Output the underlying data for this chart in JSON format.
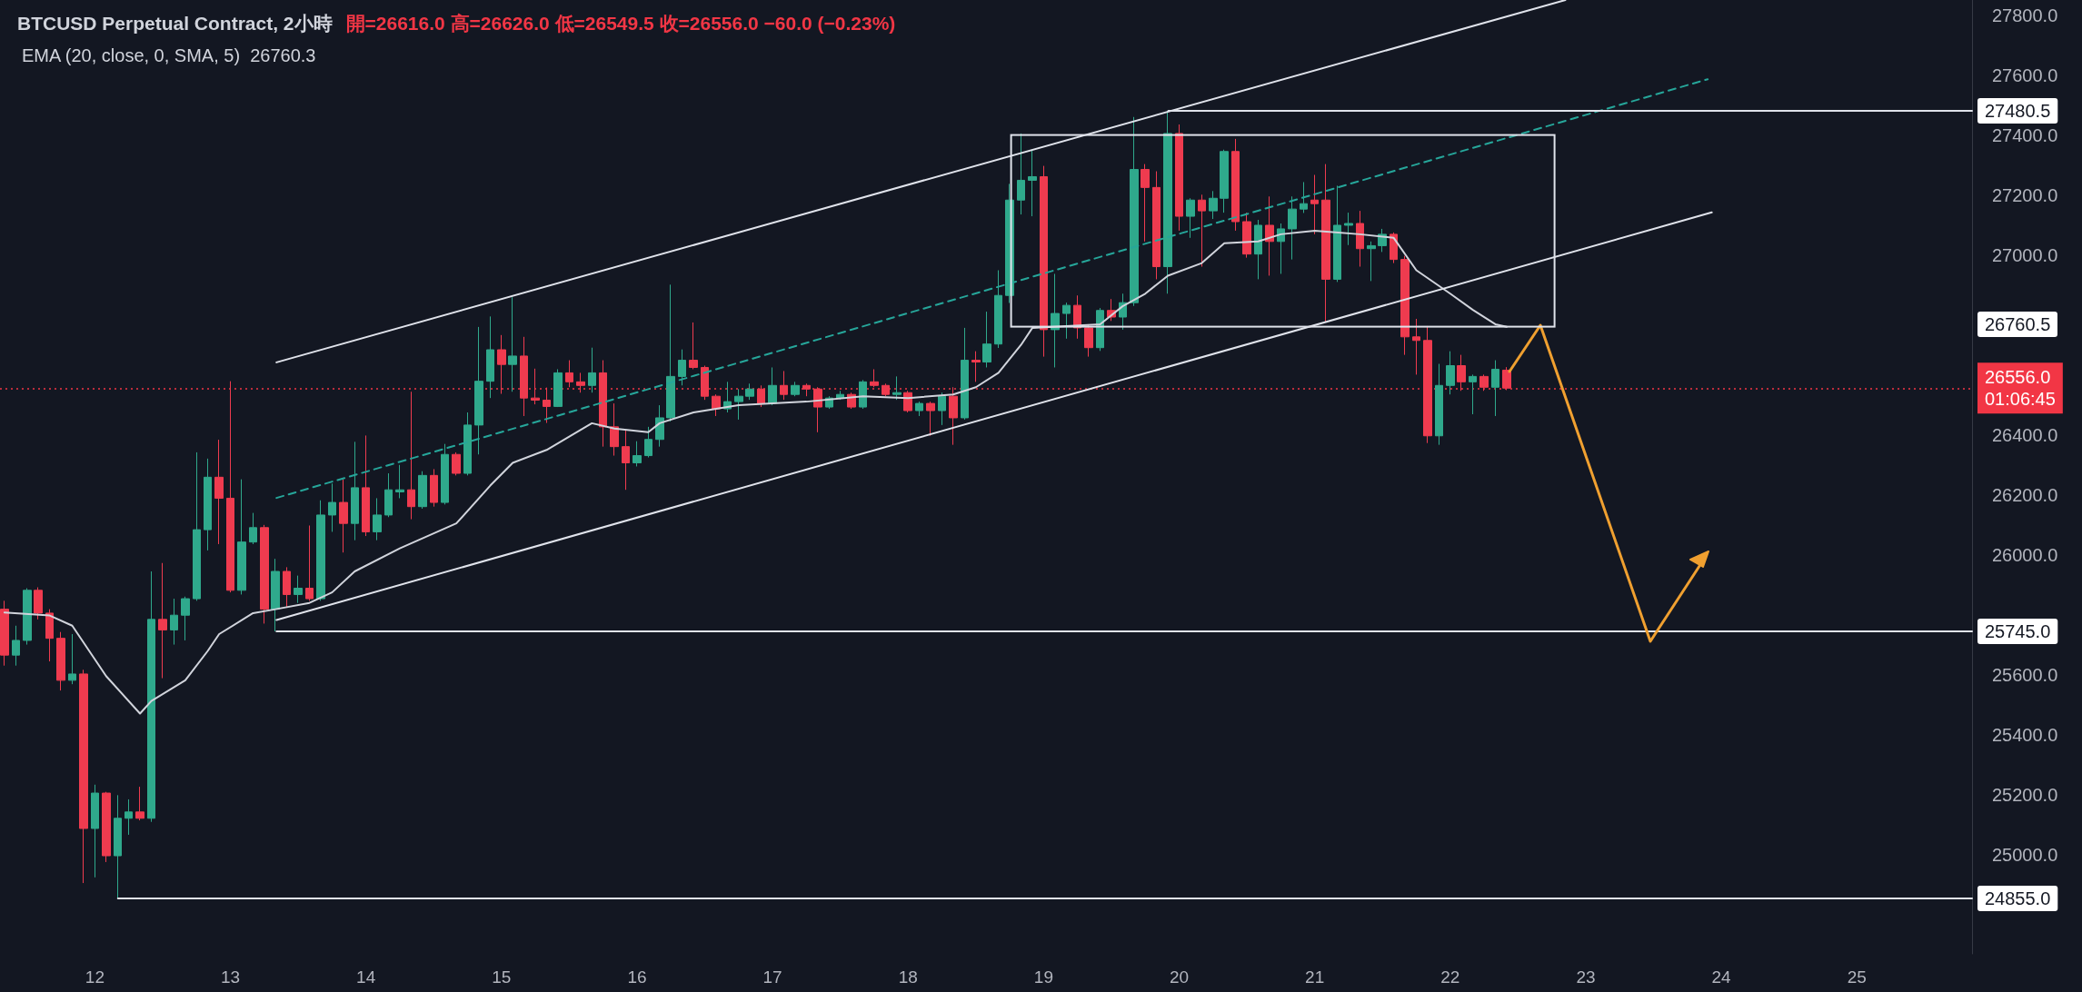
{
  "chart_data": {
    "type": "candlestick",
    "title": "BTCUSD Perpetual Contract, 2小時",
    "subtitle": "開=26616.0 高=26626.0 低=26549.5 收=26556.0 −60.0 (−0.23%)",
    "x": [
      11.333,
      11.417,
      11.5,
      11.583,
      11.667,
      11.75,
      11.833,
      11.917,
      12,
      12.083,
      12.167,
      12.25,
      12.333,
      12.417,
      12.5,
      12.583,
      12.667,
      12.75,
      12.833,
      12.917,
      13,
      13.083,
      13.167,
      13.25,
      13.333,
      13.417,
      13.5,
      13.583,
      13.667,
      13.75,
      13.833,
      13.917,
      14,
      14.083,
      14.167,
      14.25,
      14.333,
      14.417,
      14.5,
      14.583,
      14.667,
      14.75,
      14.833,
      14.917,
      15,
      15.083,
      15.167,
      15.25,
      15.333,
      15.417,
      15.5,
      15.583,
      15.667,
      15.75,
      15.833,
      15.917,
      16,
      16.083,
      16.167,
      16.25,
      16.333,
      16.417,
      16.5,
      16.583,
      16.667,
      16.75,
      16.833,
      16.917,
      17,
      17.083,
      17.167,
      17.25,
      17.333,
      17.417,
      17.5,
      17.583,
      17.667,
      17.75,
      17.833,
      17.917,
      18,
      18.083,
      18.167,
      18.25,
      18.333,
      18.417,
      18.5,
      18.583,
      18.667,
      18.75,
      18.833,
      18.917,
      19,
      19.083,
      19.167,
      19.25,
      19.333,
      19.417,
      19.5,
      19.583,
      19.667,
      19.75,
      19.833,
      19.917,
      20,
      20.083,
      20.167,
      20.25,
      20.333,
      20.417,
      20.5,
      20.583,
      20.667,
      20.75,
      20.833,
      20.917,
      21,
      21.083,
      21.167,
      21.25,
      21.333,
      21.417,
      21.5,
      21.583,
      21.667,
      21.75,
      21.833,
      21.917,
      22,
      22.083,
      22.167,
      22.25,
      22.333,
      22.417
    ],
    "ohlc": [
      [
        25819,
        25847,
        25631,
        25666
      ],
      [
        25666,
        25764,
        25631,
        25715
      ],
      [
        25715,
        25889,
        25701,
        25882
      ],
      [
        25882,
        25892,
        25785,
        25806
      ],
      [
        25806,
        25819,
        25645,
        25722
      ],
      [
        25722,
        25743,
        25548,
        25582
      ],
      [
        25582,
        25736,
        25569,
        25603
      ],
      [
        25603,
        25617,
        24906,
        25088
      ],
      [
        25088,
        25234,
        24925,
        25206
      ],
      [
        25206,
        25210,
        24976,
        24997
      ],
      [
        24997,
        25199,
        24855,
        25122
      ],
      [
        25122,
        25185,
        25067,
        25143
      ],
      [
        25143,
        25227,
        25115,
        25122
      ],
      [
        25122,
        25945,
        25110,
        25785
      ],
      [
        25785,
        25973,
        25589,
        25750
      ],
      [
        25750,
        25854,
        25701,
        25799
      ],
      [
        25799,
        25861,
        25715,
        25854
      ],
      [
        25854,
        26342,
        25847,
        26084
      ],
      [
        26084,
        26321,
        26015,
        26259
      ],
      [
        26259,
        26384,
        26036,
        26189
      ],
      [
        26189,
        26579,
        25875,
        25882
      ],
      [
        25882,
        26252,
        25868,
        26043
      ],
      [
        26043,
        26140,
        26036,
        26091
      ],
      [
        26091,
        26100,
        25771,
        25819
      ],
      [
        25819,
        25987,
        25745,
        25945
      ],
      [
        25945,
        25959,
        25826,
        25868
      ],
      [
        25868,
        25931,
        25840,
        25889
      ],
      [
        25889,
        26098,
        25847,
        25854
      ],
      [
        25854,
        26182,
        25847,
        26133
      ],
      [
        26133,
        26238,
        26077,
        26175
      ],
      [
        26175,
        26252,
        26008,
        26105
      ],
      [
        26105,
        26377,
        26049,
        26224
      ],
      [
        26224,
        26398,
        26063,
        26077
      ],
      [
        26077,
        26189,
        26049,
        26133
      ],
      [
        26133,
        26272,
        26126,
        26217
      ],
      [
        26210,
        26300,
        26189,
        26217
      ],
      [
        26217,
        26544,
        26119,
        26161
      ],
      [
        26161,
        26279,
        26154,
        26265
      ],
      [
        26265,
        26286,
        26161,
        26175
      ],
      [
        26175,
        26370,
        26168,
        26335
      ],
      [
        26335,
        26342,
        26265,
        26272
      ],
      [
        26272,
        26475,
        26265,
        26433
      ],
      [
        26433,
        26760,
        26335,
        26579
      ],
      [
        26579,
        26795,
        26523,
        26684
      ],
      [
        26684,
        26733,
        26537,
        26635
      ],
      [
        26635,
        26859,
        26544,
        26663
      ],
      [
        26663,
        26727,
        26463,
        26523
      ],
      [
        26523,
        26621,
        26502,
        26516
      ],
      [
        26516,
        26558,
        26440,
        26495
      ],
      [
        26495,
        26619,
        26493,
        26607
      ],
      [
        26607,
        26649,
        26559,
        26577
      ],
      [
        26577,
        26607,
        26541,
        26565
      ],
      [
        26565,
        26691,
        26541,
        26607
      ],
      [
        26607,
        26649,
        26361,
        26427
      ],
      [
        26427,
        26505,
        26331,
        26361
      ],
      [
        26361,
        26415,
        26217,
        26307
      ],
      [
        26307,
        26379,
        26295,
        26331
      ],
      [
        26331,
        26427,
        26325,
        26385
      ],
      [
        26385,
        26499,
        26361,
        26457
      ],
      [
        26457,
        26901,
        26445,
        26595
      ],
      [
        26595,
        26685,
        26565,
        26649
      ],
      [
        26649,
        26775,
        26619,
        26625
      ],
      [
        26625,
        26631,
        26517,
        26529
      ],
      [
        26529,
        26535,
        26463,
        26487
      ],
      [
        26487,
        26577,
        26475,
        26511
      ],
      [
        26511,
        26553,
        26451,
        26529
      ],
      [
        26529,
        26571,
        26517,
        26553
      ],
      [
        26553,
        26565,
        26493,
        26505
      ],
      [
        26505,
        26625,
        26499,
        26565
      ],
      [
        26565,
        26613,
        26517,
        26535
      ],
      [
        26535,
        26577,
        26529,
        26565
      ],
      [
        26565,
        26571,
        26529,
        26553
      ],
      [
        26553,
        26559,
        26409,
        26493
      ],
      [
        26493,
        26529,
        26487,
        26523
      ],
      [
        26523,
        26547,
        26517,
        26535
      ],
      [
        26535,
        26541,
        26487,
        26493
      ],
      [
        26493,
        26583,
        26487,
        26577
      ],
      [
        26577,
        26619,
        26559,
        26565
      ],
      [
        26565,
        26571,
        26529,
        26535
      ],
      [
        26535,
        26595,
        26517,
        26541
      ],
      [
        26541,
        26547,
        26475,
        26481
      ],
      [
        26481,
        26511,
        26463,
        26505
      ],
      [
        26505,
        26511,
        26397,
        26481
      ],
      [
        26481,
        26541,
        26433,
        26529
      ],
      [
        26529,
        26559,
        26367,
        26457
      ],
      [
        26457,
        26757,
        26451,
        26649
      ],
      [
        26649,
        26679,
        26577,
        26643
      ],
      [
        26643,
        26811,
        26625,
        26703
      ],
      [
        26703,
        26949,
        26690,
        26865
      ],
      [
        26865,
        27237,
        26840,
        27183
      ],
      [
        27183,
        27405,
        27135,
        27249
      ],
      [
        27249,
        27351,
        27129,
        27261
      ],
      [
        27261,
        27297,
        26661,
        26751
      ],
      [
        26751,
        26937,
        26625,
        26805
      ],
      [
        26805,
        26841,
        26721,
        26832
      ],
      [
        26832,
        26865,
        26721,
        26757
      ],
      [
        26757,
        26769,
        26661,
        26691
      ],
      [
        26691,
        26823,
        26680,
        26815
      ],
      [
        26815,
        26853,
        26780,
        26793
      ],
      [
        26793,
        26871,
        26751,
        26841
      ],
      [
        26841,
        27460,
        26830,
        27285
      ],
      [
        27285,
        27303,
        27045,
        27225
      ],
      [
        27225,
        27279,
        26919,
        26961
      ],
      [
        26961,
        27480.5,
        26871,
        27405
      ],
      [
        27405,
        27435,
        27081,
        27129
      ],
      [
        27129,
        27189,
        27057,
        27183
      ],
      [
        27183,
        27201,
        26961,
        27147
      ],
      [
        27147,
        27213,
        27120,
        27189
      ],
      [
        27189,
        27351,
        27141,
        27345
      ],
      [
        27345,
        27387,
        27081,
        27111
      ],
      [
        27111,
        27141,
        26991,
        27003
      ],
      [
        27003,
        27117,
        26919,
        27099
      ],
      [
        27099,
        27195,
        26931,
        27045
      ],
      [
        27045,
        27105,
        26937,
        27087
      ],
      [
        27087,
        27195,
        26985,
        27153
      ],
      [
        27153,
        27243,
        27140,
        27171
      ],
      [
        27183,
        27267,
        27069,
        27171
      ],
      [
        27183,
        27303,
        26775,
        26919
      ],
      [
        26919,
        27231,
        26910,
        27099
      ],
      [
        27099,
        27141,
        27033,
        27105
      ],
      [
        27105,
        27147,
        26961,
        27021
      ],
      [
        27021,
        27045,
        26913,
        27031
      ],
      [
        27031,
        27087,
        27010,
        27069
      ],
      [
        27069,
        27075,
        26973,
        26985
      ],
      [
        26985,
        26997,
        26667,
        26727
      ],
      [
        26727,
        26787,
        26601,
        26715
      ],
      [
        26715,
        26763,
        26373,
        26397
      ],
      [
        26397,
        26637,
        26367,
        26565
      ],
      [
        26565,
        26679,
        26535,
        26631
      ],
      [
        26631,
        26667,
        26547,
        26577
      ],
      [
        26577,
        26601,
        26469,
        26595
      ],
      [
        26595,
        26601,
        26547,
        26559
      ],
      [
        26559,
        26649,
        26463,
        26619
      ],
      [
        26616,
        26626,
        26549.5,
        26556
      ]
    ],
    "colors": [
      "#ef3b4f",
      "#2fa98c",
      "#2fa98c",
      "#ef3b4f",
      "#ef3b4f",
      "#ef3b4f",
      "#2fa98c",
      "#ef3b4f",
      "#2fa98c",
      "#ef3b4f",
      "#2fa98c",
      "#2fa98c",
      "#ef3b4f",
      "#2fa98c",
      "#ef3b4f",
      "#2fa98c",
      "#2fa98c",
      "#2fa98c",
      "#2fa98c",
      "#ef3b4f",
      "#ef3b4f",
      "#2fa98c",
      "#2fa98c",
      "#ef3b4f",
      "#2fa98c",
      "#ef3b4f",
      "#2fa98c",
      "#ef3b4f",
      "#2fa98c",
      "#2fa98c",
      "#ef3b4f",
      "#2fa98c",
      "#ef3b4f",
      "#2fa98c",
      "#2fa98c",
      "#2fa98c",
      "#ef3b4f",
      "#2fa98c",
      "#ef3b4f",
      "#2fa98c",
      "#ef3b4f",
      "#2fa98c",
      "#2fa98c",
      "#2fa98c",
      "#ef3b4f",
      "#2fa98c",
      "#ef3b4f",
      "#ef3b4f",
      "#ef3b4f",
      "#2fa98c",
      "#ef3b4f",
      "#ef3b4f",
      "#2fa98c",
      "#ef3b4f",
      "#ef3b4f",
      "#ef3b4f",
      "#2fa98c",
      "#2fa98c",
      "#2fa98c",
      "#2fa98c",
      "#2fa98c",
      "#ef3b4f",
      "#ef3b4f",
      "#ef3b4f",
      "#2fa98c",
      "#2fa98c",
      "#2fa98c",
      "#ef3b4f",
      "#2fa98c",
      "#ef3b4f",
      "#2fa98c",
      "#ef3b4f",
      "#ef3b4f",
      "#2fa98c",
      "#2fa98c",
      "#ef3b4f",
      "#2fa98c",
      "#ef3b4f",
      "#ef3b4f",
      "#2fa98c",
      "#ef3b4f",
      "#2fa98c",
      "#ef3b4f",
      "#2fa98c",
      "#ef3b4f",
      "#2fa98c",
      "#ef3b4f",
      "#2fa98c",
      "#2fa98c",
      "#2fa98c",
      "#2fa98c",
      "#2fa98c",
      "#ef3b4f",
      "#2fa98c",
      "#2fa98c",
      "#ef3b4f",
      "#ef3b4f",
      "#2fa98c",
      "#ef3b4f",
      "#2fa98c",
      "#2fa98c",
      "#ef3b4f",
      "#ef3b4f",
      "#2fa98c",
      "#ef3b4f",
      "#2fa98c",
      "#ef3b4f",
      "#2fa98c",
      "#2fa98c",
      "#ef3b4f",
      "#ef3b4f",
      "#2fa98c",
      "#ef3b4f",
      "#2fa98c",
      "#2fa98c",
      "#2fa98c",
      "#ef3b4f",
      "#ef3b4f",
      "#2fa98c",
      "#2fa98c",
      "#ef3b4f",
      "#2fa98c",
      "#2fa98c",
      "#ef3b4f",
      "#ef3b4f",
      "#ef3b4f",
      "#ef3b4f",
      "#2fa98c",
      "#2fa98c",
      "#ef3b4f",
      "#2fa98c",
      "#ef3b4f",
      "#2fa98c",
      "#ef3b4f"
    ],
    "series": [
      {
        "type": "line",
        "name": "EMA (20, close, 0, SMA, 5)  26760.3",
        "color": "#d1d4dc",
        "x": [
          11.333,
          11.667,
          11.833,
          12.083,
          12.333,
          12.417,
          12.667,
          12.833,
          12.917,
          13.167,
          13.333,
          13.583,
          13.75,
          13.917,
          14.25,
          14.667,
          14.917,
          15.083,
          15.333,
          15.667,
          15.833,
          16.083,
          16.167,
          16.417,
          16.75,
          17.25,
          17.667,
          18,
          18.333,
          18.5,
          18.667,
          18.833,
          18.917,
          19.167,
          19.417,
          19.583,
          19.75,
          19.917,
          20.167,
          20.333,
          20.583,
          20.75,
          21,
          21.333,
          21.583,
          21.75,
          22,
          22.167,
          22.333,
          22.417
        ],
        "values": [
          25808,
          25798,
          25764,
          25596,
          25471,
          25513,
          25582,
          25680,
          25736,
          25806,
          25819,
          25840,
          25875,
          25945,
          26022,
          26105,
          26231,
          26307,
          26350,
          26439,
          26421,
          26409,
          26439,
          26475,
          26499,
          26511,
          26529,
          26523,
          26535,
          26559,
          26607,
          26700,
          26757,
          26763,
          26769,
          26829,
          26871,
          26931,
          26973,
          27039,
          27045,
          27069,
          27081,
          27069,
          27057,
          26949,
          26871,
          26817,
          26769,
          26760.3
        ]
      },
      {
        "type": "line",
        "color": "#e0e3eb",
        "x": [
          13.34,
          22.85
        ],
        "values": [
          26642,
          27850
        ]
      },
      {
        "type": "line",
        "color": "#e0e3eb",
        "x": [
          13.34,
          23.93
        ],
        "values": [
          25783,
          27142
        ]
      },
      {
        "type": "line",
        "color": "#26a69a",
        "line_style": "dashed",
        "x": [
          13.34,
          23.9
        ],
        "values": [
          26190,
          27586
        ]
      },
      {
        "type": "line",
        "color": "#e0e3eb",
        "x": [
          19.92,
          25.85
        ],
        "values": [
          27480.5,
          27480.5
        ],
        "value_labels": [
          null,
          "27480.5"
        ]
      },
      {
        "type": "line",
        "color": "#e0e3eb",
        "x": [
          13.34,
          25.85
        ],
        "values": [
          25745,
          25745
        ],
        "value_labels": [
          null,
          "25745.0"
        ]
      },
      {
        "type": "line",
        "color": "#e0e3eb",
        "x": [
          12.17,
          25.85
        ],
        "values": [
          24855,
          24855
        ],
        "value_labels": [
          null,
          "24855.0"
        ]
      }
    ],
    "xlim": [
      11.3,
      25.85
    ],
    "xticks": [
      12,
      13,
      14,
      15,
      16,
      17,
      18,
      19,
      20,
      21,
      22,
      23,
      24,
      25
    ],
    "ylim": [
      24670,
      27850
    ],
    "yticks": [
      {
        "value": 25000,
        "label": "25000.0"
      },
      {
        "value": 25200,
        "label": "25200.0"
      },
      {
        "value": 25400,
        "label": "25400.0"
      },
      {
        "value": 25600,
        "label": "25600.0"
      },
      {
        "value": 26000,
        "label": "26000.0"
      },
      {
        "value": 26200,
        "label": "26200.0"
      },
      {
        "value": 26400,
        "label": "26400.0"
      },
      {
        "value": 27000,
        "label": "27000.0"
      },
      {
        "value": 27200,
        "label": "27200.0"
      },
      {
        "value": 27400,
        "label": "27400.0"
      },
      {
        "value": 27600,
        "label": "27600.0"
      },
      {
        "value": 27800,
        "label": "27800.0"
      }
    ],
    "grid": false,
    "legend": "top left",
    "ref_lines": [
      {
        "axis": "y",
        "value": 26556,
        "label": "26556.0\n01:06:45",
        "color": "#f23645",
        "line_style": "dotted"
      }
    ],
    "annotations": [
      "26760.5"
    ]
  }
}
